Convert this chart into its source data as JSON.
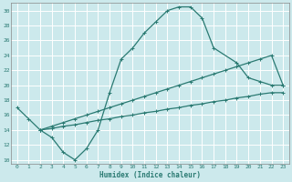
{
  "xlabel": "Humidex (Indice chaleur)",
  "xlim": [
    -0.5,
    23.5
  ],
  "ylim": [
    9.5,
    31
  ],
  "xticks": [
    0,
    1,
    2,
    3,
    4,
    5,
    6,
    7,
    8,
    9,
    10,
    11,
    12,
    13,
    14,
    15,
    16,
    17,
    18,
    19,
    20,
    21,
    22,
    23
  ],
  "yticks": [
    10,
    12,
    14,
    16,
    18,
    20,
    22,
    24,
    26,
    28,
    30
  ],
  "bg_color": "#cce9ec",
  "grid_color": "#ffffff",
  "line_color": "#2a7a72",
  "line1_x": [
    0,
    1,
    2,
    3,
    4,
    5,
    6,
    7,
    8,
    9,
    10,
    11,
    12,
    13,
    14,
    15,
    16,
    17,
    19,
    20,
    21,
    22,
    23
  ],
  "line1_y": [
    17,
    15.5,
    14,
    13,
    11,
    10,
    11.5,
    14,
    19,
    23.5,
    25,
    27,
    28.5,
    30,
    30.5,
    30.5,
    29,
    25,
    23,
    21,
    20.5,
    20,
    20
  ],
  "line2_x": [
    2,
    3,
    4,
    5,
    6,
    7,
    8,
    9,
    10,
    11,
    12,
    13,
    14,
    15,
    16,
    17,
    18,
    19,
    20,
    21,
    22,
    23
  ],
  "line2_y": [
    14,
    14.5,
    15,
    15.5,
    16,
    16.5,
    17,
    17.5,
    18,
    18.5,
    19,
    19.5,
    20,
    20.5,
    21,
    21.5,
    22,
    22.5,
    23,
    23.5,
    24,
    20
  ],
  "line3_x": [
    2,
    3,
    4,
    5,
    6,
    7,
    8,
    9,
    10,
    11,
    12,
    13,
    14,
    15,
    16,
    17,
    18,
    19,
    20,
    21,
    22,
    23
  ],
  "line3_y": [
    14,
    14.2,
    14.5,
    14.7,
    15,
    15.3,
    15.5,
    15.8,
    16,
    16.3,
    16.5,
    16.8,
    17,
    17.3,
    17.5,
    17.8,
    18,
    18.3,
    18.5,
    18.8,
    19,
    19
  ]
}
